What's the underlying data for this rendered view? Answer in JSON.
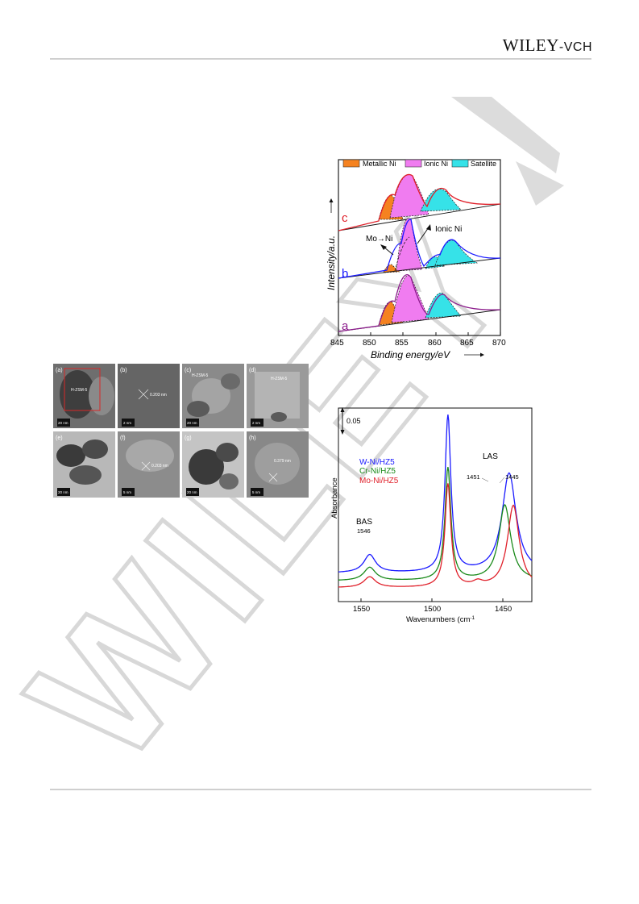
{
  "header": {
    "publisher_main": "WILEY",
    "publisher_suffix": "-VCH"
  },
  "watermark": {
    "text": "WILEY"
  },
  "xps_figure": {
    "legend": [
      "Metallic Ni",
      "Ionic Ni",
      "Satellite"
    ],
    "legend_colors": [
      "#f58220",
      "#f07cf0",
      "#36e2e8"
    ],
    "ylabel": "Intensity/a.u.",
    "xlabel": "Binding energy/eV",
    "trace_labels": [
      "a",
      "b",
      "c"
    ],
    "trace_colors": [
      "#8b1a8b",
      "#1a1aff",
      "#e0202a"
    ],
    "annotations": [
      "Mo→Ni",
      "Ionic Ni"
    ],
    "x_ticks": [
      "845",
      "850",
      "855",
      "860",
      "865",
      "870"
    ]
  },
  "tem_figure": {
    "panels": [
      {
        "letter": "(a)",
        "label": "H-ZSM-5",
        "scale": "20 nm"
      },
      {
        "letter": "(b)",
        "label": "0.203 nm",
        "scale": "2 nm"
      },
      {
        "letter": "(c)",
        "label": "H-ZSM-5",
        "scale": "20 nm"
      },
      {
        "letter": "(d)",
        "label": "H-ZSM-5",
        "scale": "2 nm"
      },
      {
        "letter": "(e)",
        "label": "",
        "scale": "20 nm"
      },
      {
        "letter": "(f)",
        "label": "0.203 nm",
        "scale": "5 nm"
      },
      {
        "letter": "(g)",
        "label": "",
        "scale": "20 nm"
      },
      {
        "letter": "(h)",
        "label": "0.379 nm",
        "scale": "5 nm"
      }
    ]
  },
  "chart_data": {
    "type": "line",
    "title": "",
    "xlabel": "Wavenumbers (cm-1)",
    "ylabel": "Absorbance",
    "xlim": [
      1568,
      1432
    ],
    "x_reversed": true,
    "x_ticks": [
      1550,
      1500,
      1450
    ],
    "scale_bar_label": "0.05",
    "annotations": [
      {
        "text": "BAS",
        "x": 1546
      },
      {
        "text": "1546",
        "x": 1546
      },
      {
        "text": "LAS",
        "x": 1449
      },
      {
        "text": "1451",
        "x": 1451
      },
      {
        "text": "1445",
        "x": 1445
      }
    ],
    "series": [
      {
        "name": "W-Ni/HZ5",
        "color": "#1a1aff",
        "baseline": 0.66,
        "peaks": [
          {
            "x": 1546,
            "h": 0.42,
            "w": 5
          },
          {
            "x": 1491,
            "h": 3.64,
            "w": 2.5
          },
          {
            "x": 1448,
            "h": 2.32,
            "w": 6
          }
        ]
      },
      {
        "name": "Cr-Ni/HZ5",
        "color": "#1a8a1a",
        "baseline": 0.48,
        "peaks": [
          {
            "x": 1546,
            "h": 0.31,
            "w": 5
          },
          {
            "x": 1491,
            "h": 2.62,
            "w": 2.5
          },
          {
            "x": 1451,
            "h": 1.76,
            "w": 5
          }
        ]
      },
      {
        "name": "Mo-Ni/HZ5",
        "color": "#e0202a",
        "baseline": 0.32,
        "peaks": [
          {
            "x": 1546,
            "h": 0.25,
            "w": 5
          },
          {
            "x": 1491,
            "h": 2.4,
            "w": 2.5
          },
          {
            "x": 1445,
            "h": 1.91,
            "w": 5
          },
          {
            "x": 1470,
            "h": 0.1,
            "w": 4
          }
        ]
      }
    ]
  }
}
